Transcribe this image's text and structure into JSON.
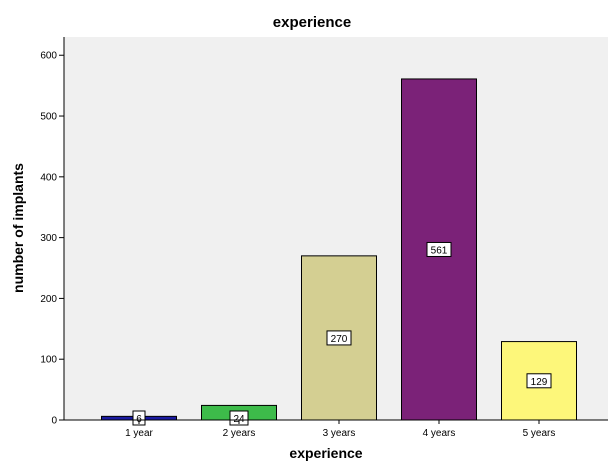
{
  "chart_data": {
    "type": "bar",
    "title": "experience",
    "xlabel": "experience",
    "ylabel": "number of implants",
    "categories": [
      "1 year",
      "2 years",
      "3 years",
      "4 years",
      "5 years"
    ],
    "values": [
      6,
      24,
      270,
      561,
      129
    ],
    "data_labels": [
      "6",
      "24",
      "270",
      "561",
      "129"
    ],
    "colors": [
      "#1a1aa0",
      "#3dbb4a",
      "#d4cf92",
      "#7b2278",
      "#fdf77a"
    ],
    "ylim": [
      0,
      630
    ],
    "yticks": [
      0,
      100,
      200,
      300,
      400,
      500,
      600
    ],
    "ytick_labels": [
      "0",
      "100",
      "200",
      "300",
      "400",
      "500",
      "600"
    ],
    "plot_background": "#f0f0f0",
    "grid": false,
    "legend": "none"
  }
}
